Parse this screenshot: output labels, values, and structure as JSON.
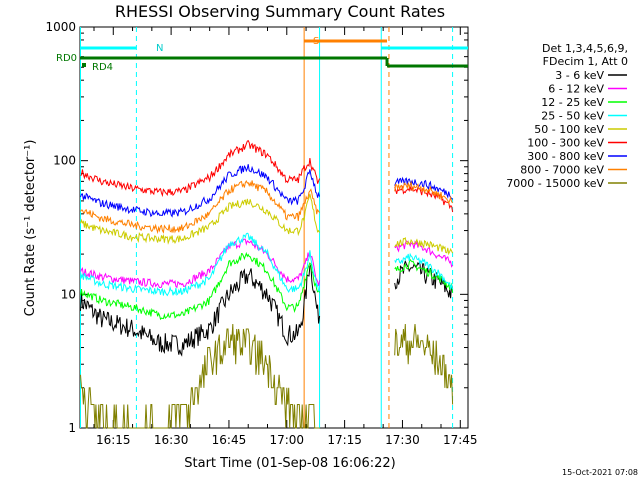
{
  "chart_data": {
    "type": "line",
    "title": "RHESSI Observing Summary Count Rates",
    "xlabel": "Start Time (01-Sep-08 16:06:22)",
    "ylabel": "Count Rate (s⁻¹ detector⁻¹)",
    "y_scale": "log",
    "ylim": [
      1,
      1000
    ],
    "xlim_minutes": [
      6.37,
      107
    ],
    "x_tick_labels": [
      "16:15",
      "16:30",
      "16:45",
      "17:00",
      "17:15",
      "17:30",
      "17:45"
    ],
    "x_tick_minutes": [
      15,
      30,
      45,
      60,
      75,
      90,
      105
    ],
    "y_tick_labels": [
      "1",
      "10",
      "100",
      "1000"
    ],
    "y_tick_values": [
      1,
      10,
      100,
      1000
    ],
    "legend_header": [
      "Det 1,3,4,5,6,9,",
      "FDecim 1, Att 0"
    ],
    "grid": false,
    "legend_position": "right",
    "footer_date": "15-Oct-2021 07:08",
    "state_labels": {
      "rd0": "RD0",
      "rd4": "RD4",
      "n": "N",
      "s": "S"
    },
    "data_gaps_minutes": [
      [
        68.5,
        85.5
      ]
    ],
    "series": [
      {
        "name": "3 - 6 keV",
        "color": "#000000",
        "x": [
          6.5,
          12,
          20,
          27,
          33,
          40,
          45,
          50,
          55,
          60,
          63,
          64.5,
          66,
          68,
          88,
          92,
          96,
          100,
          103
        ],
        "y": [
          9,
          6.5,
          5.5,
          4.3,
          4.2,
          5.5,
          10,
          14,
          10,
          5,
          5,
          8,
          18,
          7,
          13,
          16,
          14,
          12,
          10
        ]
      },
      {
        "name": "6 - 12 keV",
        "color": "#ff00ff",
        "x": [
          6.5,
          12,
          20,
          27,
          33,
          40,
          45,
          50,
          55,
          60,
          63,
          64.5,
          66,
          68,
          88,
          92,
          96,
          100,
          103
        ],
        "y": [
          15,
          13.5,
          12.5,
          12,
          12,
          15,
          23,
          25,
          20,
          13,
          13,
          16,
          21,
          12,
          22,
          24,
          22,
          19,
          17
        ]
      },
      {
        "name": "12 - 25 keV",
        "color": "#00ff00",
        "x": [
          6.5,
          12,
          20,
          27,
          33,
          40,
          45,
          50,
          55,
          60,
          63,
          64.5,
          66,
          68,
          88,
          92,
          96,
          100,
          103
        ],
        "y": [
          10.5,
          9,
          8,
          7,
          7,
          9,
          17,
          20,
          15,
          8,
          8,
          12,
          18,
          10,
          15,
          17,
          15,
          13,
          11
        ]
      },
      {
        "name": "25 - 50 keV",
        "color": "#00ffff",
        "x": [
          6.5,
          12,
          20,
          27,
          33,
          40,
          45,
          50,
          55,
          60,
          63,
          64.5,
          66,
          68,
          88,
          92,
          96,
          100,
          103
        ],
        "y": [
          14,
          12,
          11,
          10.5,
          10.5,
          13,
          24,
          27,
          20,
          11,
          11,
          14,
          20,
          11,
          17,
          19,
          17,
          14,
          11
        ]
      },
      {
        "name": "50 - 100 keV",
        "color": "#cccc00",
        "x": [
          6.5,
          12,
          20,
          27,
          33,
          40,
          45,
          50,
          55,
          60,
          63,
          64.5,
          66,
          68,
          88,
          92,
          96,
          100,
          103
        ],
        "y": [
          34,
          30,
          27,
          26,
          26,
          32,
          45,
          50,
          42,
          30,
          30,
          37,
          55,
          30,
          24,
          25,
          24,
          22,
          20
        ]
      },
      {
        "name": "100 - 300 keV",
        "color": "#ff0000",
        "x": [
          6.5,
          12,
          20,
          27,
          33,
          40,
          45,
          50,
          55,
          60,
          63,
          64.5,
          66,
          68,
          88,
          92,
          96,
          100,
          103
        ],
        "y": [
          82,
          70,
          62,
          58,
          59,
          75,
          110,
          132,
          110,
          72,
          72,
          88,
          100,
          70,
          60,
          62,
          58,
          52,
          44
        ]
      },
      {
        "name": "300 - 800 keV",
        "color": "#0000ff",
        "x": [
          6.5,
          12,
          20,
          27,
          33,
          40,
          45,
          50,
          55,
          60,
          63,
          64.5,
          66,
          68,
          88,
          92,
          96,
          100,
          103
        ],
        "y": [
          55,
          48,
          43,
          40,
          41,
          52,
          78,
          90,
          75,
          50,
          50,
          62,
          85,
          55,
          68,
          70,
          67,
          60,
          55
        ]
      },
      {
        "name": "800 - 7000 keV",
        "color": "#ff8000",
        "x": [
          6.5,
          12,
          20,
          27,
          33,
          40,
          45,
          50,
          55,
          60,
          63,
          64.5,
          66,
          68,
          88,
          92,
          96,
          100,
          103
        ],
        "y": [
          43,
          37,
          33,
          31,
          31,
          40,
          60,
          69,
          58,
          38,
          38,
          47,
          60,
          40,
          63,
          65,
          62,
          55,
          49
        ]
      },
      {
        "name": "7000 - 15000 keV",
        "color": "#808000",
        "x": [
          6.5,
          9,
          12,
          20,
          27,
          35,
          40,
          45,
          50,
          55,
          60,
          63,
          66,
          68,
          88,
          92,
          96,
          100,
          103
        ],
        "y": [
          2,
          1.5,
          1.2,
          1,
          1,
          1.5,
          3,
          4.5,
          4,
          3,
          1.5,
          1,
          1.5,
          1,
          4,
          4.5,
          4,
          3,
          2
        ]
      }
    ],
    "state_bars": [
      {
        "name": "RD0",
        "color": "#007700",
        "level": "upper",
        "segments": [
          [
            6.37,
            86
          ],
          [
            86,
            86
          ]
        ]
      },
      {
        "name": "RD4",
        "color": "#007700",
        "level": "lower",
        "segments": [
          [
            86,
            103
          ]
        ]
      },
      {
        "name": "N",
        "color": "#00ffff",
        "segments": [
          [
            6.37,
            21
          ],
          [
            84.5,
            103
          ]
        ]
      },
      {
        "name": "S",
        "color": "#ff8000",
        "segments": [
          [
            64.5,
            86
          ]
        ]
      }
    ],
    "vertical_markers": [
      {
        "minute": 6.5,
        "color": "#00ffff",
        "style": "solid"
      },
      {
        "minute": 21,
        "color": "#00ffff",
        "style": "dashed"
      },
      {
        "minute": 64.5,
        "color": "#ff8000",
        "style": "solid"
      },
      {
        "minute": 68.5,
        "color": "#00ffff",
        "style": "solid"
      },
      {
        "minute": 84.5,
        "color": "#00ffff",
        "style": "solid"
      },
      {
        "minute": 86.5,
        "color": "#ff8000",
        "style": "dashed"
      },
      {
        "minute": 103,
        "color": "#00ffff",
        "style": "dashed"
      }
    ]
  }
}
